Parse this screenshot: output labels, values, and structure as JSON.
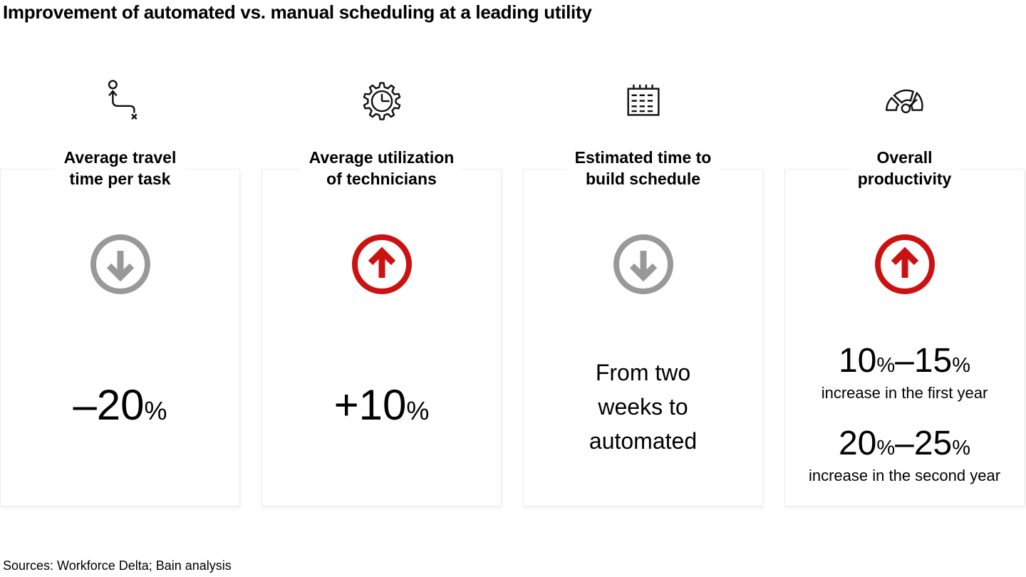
{
  "title": "Improvement of automated vs. manual scheduling at a leading utility",
  "source": "Sources: Workforce Delta; Bain analysis",
  "colors": {
    "accent_red": "#cc1111",
    "neutral_gray": "#999999",
    "card_border": "#ececec",
    "icon_ink": "#111111"
  },
  "chart_data": {
    "type": "table",
    "title": "Improvement of automated vs. manual scheduling at a leading utility",
    "categories": [
      "Average travel time per task",
      "Average utilization of technicians",
      "Estimated time to build schedule",
      "Overall productivity"
    ],
    "values": [
      "–20%",
      "+10%",
      "From two weeks to automated",
      "10%–15% increase in the first year; 20%–25% increase in the second year"
    ],
    "trends": [
      "down",
      "up",
      "down",
      "up"
    ],
    "source": "Sources: Workforce Delta; Bain analysis"
  },
  "cards": [
    {
      "heading_line1": "Average travel",
      "heading_line2": "time per task",
      "icon": "route-icon",
      "trend": "down",
      "value_number": "–20",
      "value_unit": "%"
    },
    {
      "heading_line1": "Average utilization",
      "heading_line2": "of technicians",
      "icon": "gear-clock-icon",
      "trend": "up",
      "value_number": "+10",
      "value_unit": "%"
    },
    {
      "heading_line1": "Estimated time to",
      "heading_line2": "build schedule",
      "icon": "schedule-icon",
      "trend": "down",
      "text_line1": "From two",
      "text_line2": "weeks to",
      "text_line3": "automated"
    },
    {
      "heading_line1": "Overall",
      "heading_line2": "productivity",
      "icon": "gauge-icon",
      "trend": "up",
      "stats": [
        {
          "from": "10",
          "from_unit": "%",
          "dash": "–",
          "to": "15",
          "to_unit": "%",
          "caption": "increase in the first year"
        },
        {
          "from": "20",
          "from_unit": "%",
          "dash": "–",
          "to": "25",
          "to_unit": "%",
          "caption": "increase in the second year"
        }
      ]
    }
  ]
}
